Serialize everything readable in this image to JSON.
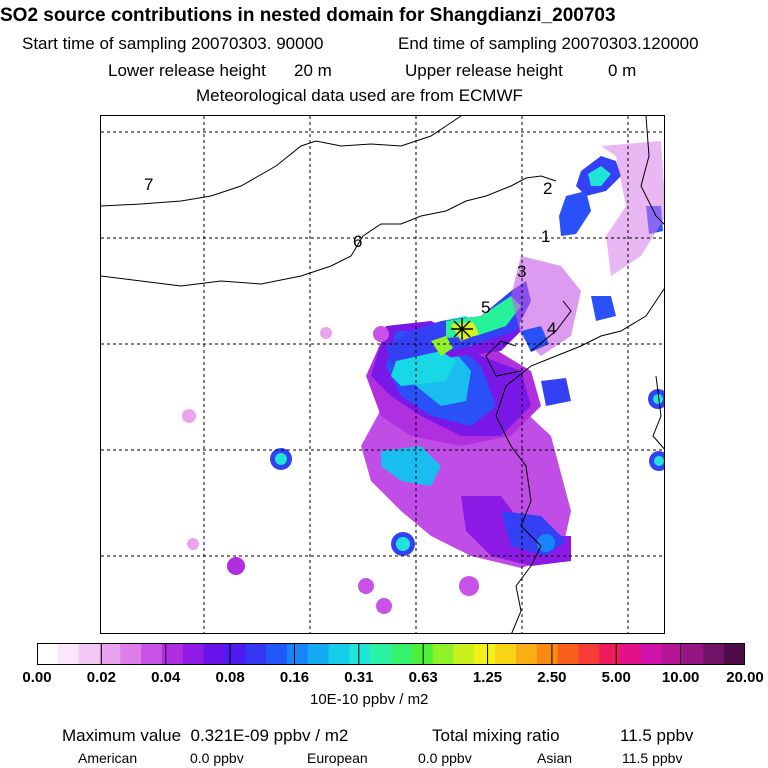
{
  "header": {
    "title": "SO2 source contributions in nested domain for Shangdianzi_200703",
    "start_label": "Start time of sampling 20070303. 90000",
    "end_label": "End time of sampling 20070303.120000",
    "lower_label": "Lower release height",
    "lower_value": "20 m",
    "upper_label": "Upper release height",
    "upper_value": "0 m",
    "met_label": "Meteorological data used are from ECMWF"
  },
  "map": {
    "region_labels": [
      "1",
      "2",
      "3",
      "4",
      "5",
      "6",
      "7"
    ],
    "site_marker": "Shangdianzi"
  },
  "colorbar": {
    "ticks": [
      "0.00",
      "0.02",
      "0.04",
      "0.08",
      "0.16",
      "0.31",
      "0.63",
      "1.25",
      "2.50",
      "5.00",
      "10.00",
      "20.00"
    ],
    "unit": "10E-10 ppbv / m2",
    "colors": [
      "#ffffff",
      "#fbe6fb",
      "#f4c8f4",
      "#eaa4ef",
      "#dd7ee9",
      "#c952e6",
      "#b02ee0",
      "#8f1be4",
      "#6a12ea",
      "#4e1cf0",
      "#3535f4",
      "#2257fb",
      "#1785fa",
      "#13aaf3",
      "#18cdea",
      "#1ee6d8",
      "#2cf2a6",
      "#35f26e",
      "#4cf03a",
      "#8ef12a",
      "#c9f11e",
      "#f3f118",
      "#f8d414",
      "#f9ae12",
      "#f98a12",
      "#f8601a",
      "#f63c36",
      "#ef1b5e",
      "#e3108a",
      "#cf12aa",
      "#b71598",
      "#951584",
      "#701266",
      "#4e0c48"
    ]
  },
  "summary": {
    "max_label": "Maximum value",
    "max_value": "0.321E-09 ppbv / m2",
    "total_label": "Total mixing ratio",
    "total_value": "11.5 ppbv",
    "american_label": "American",
    "american_value": "0.0 ppbv",
    "european_label": "European",
    "european_value": "0.0 ppbv",
    "asian_label": "Asian",
    "asian_value": "11.5 ppbv"
  }
}
